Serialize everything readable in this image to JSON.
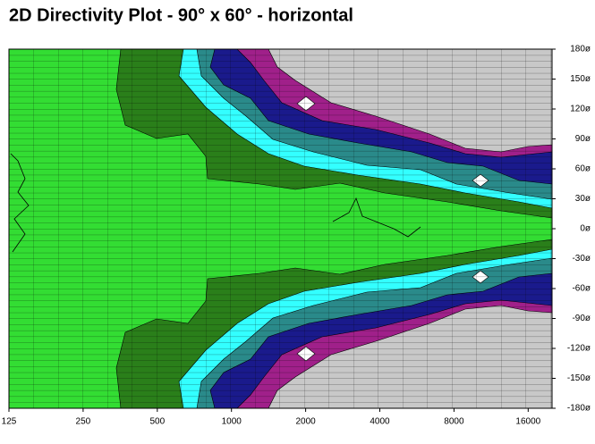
{
  "chart_data": {
    "type": "contour",
    "title": "2D Directivity Plot - 90° x 60° - horizontal",
    "x_log": true,
    "xlim": [
      125,
      20000
    ],
    "xticks": [
      125,
      250,
      500,
      1000,
      2000,
      4000,
      8000,
      16000
    ],
    "ylim": [
      -180,
      180
    ],
    "yticks": [
      {
        "value": 180,
        "label": "180ø"
      },
      {
        "value": 150,
        "label": "150ø"
      },
      {
        "value": 120,
        "label": "120ø"
      },
      {
        "value": 90,
        "label": "90ø"
      },
      {
        "value": 60,
        "label": "60ø"
      },
      {
        "value": 30,
        "label": "30ø"
      },
      {
        "value": 0,
        "label": "0ø"
      },
      {
        "value": -30,
        "label": "-30ø"
      },
      {
        "value": -60,
        "label": "-60ø"
      },
      {
        "value": -90,
        "label": "-90ø"
      },
      {
        "value": -120,
        "label": "-120ø"
      },
      {
        "value": -150,
        "label": "-150ø"
      },
      {
        "value": -180,
        "label": "-180ø"
      }
    ]
  }
}
